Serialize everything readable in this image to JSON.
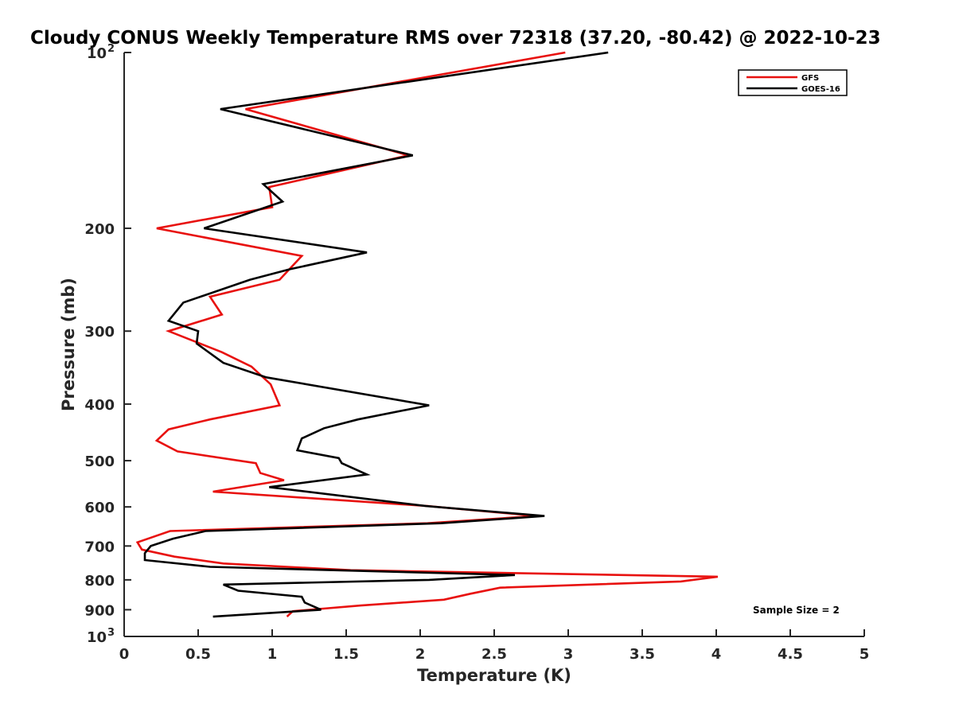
{
  "chart_data": {
    "type": "line",
    "title": "Cloudy CONUS Weekly Temperature RMS over 72318 (37.20, -80.42) @ 2022-10-23",
    "xlabel": "Temperature (K)",
    "ylabel": "Pressure (mb)",
    "xlim": [
      0,
      5
    ],
    "ylim": [
      100,
      1000
    ],
    "y_scale": "log",
    "y_reversed": true,
    "x_ticks": [
      "0",
      "0.5",
      "1",
      "1.5",
      "2",
      "2.5",
      "3",
      "3.5",
      "4",
      "4.5",
      "5"
    ],
    "y_ticks": [
      {
        "value": 100,
        "base": "10",
        "exp": "2"
      },
      {
        "value": 200,
        "label": "200"
      },
      {
        "value": 300,
        "label": "300"
      },
      {
        "value": 400,
        "label": "400"
      },
      {
        "value": 500,
        "label": "500"
      },
      {
        "value": 600,
        "label": "600"
      },
      {
        "value": 700,
        "label": "700"
      },
      {
        "value": 800,
        "label": "800"
      },
      {
        "value": 900,
        "label": "900"
      },
      {
        "value": 1000,
        "base": "10",
        "exp": "3"
      }
    ],
    "legend_position": "top-right",
    "annotation": "Sample Size = 2",
    "series": [
      {
        "name": "GFS",
        "color": "#e8110f",
        "points": [
          [
            2.98,
            100
          ],
          [
            0.82,
            125
          ],
          [
            1.92,
            150
          ],
          [
            0.98,
            170
          ],
          [
            1.0,
            184
          ],
          [
            0.22,
            200
          ],
          [
            1.2,
            223
          ],
          [
            1.05,
            245
          ],
          [
            0.58,
            262
          ],
          [
            0.66,
            281
          ],
          [
            0.3,
            300
          ],
          [
            0.66,
            326
          ],
          [
            0.86,
            345
          ],
          [
            0.99,
            370
          ],
          [
            1.05,
            402
          ],
          [
            0.58,
            425
          ],
          [
            0.3,
            442
          ],
          [
            0.22,
            462
          ],
          [
            0.36,
            482
          ],
          [
            0.89,
            505
          ],
          [
            0.92,
            525
          ],
          [
            1.08,
            540
          ],
          [
            0.6,
            565
          ],
          [
            2.05,
            598
          ],
          [
            2.79,
            622
          ],
          [
            2.05,
            640
          ],
          [
            0.31,
            660
          ],
          [
            0.09,
            690
          ],
          [
            0.12,
            710
          ],
          [
            0.34,
            730
          ],
          [
            0.67,
            750
          ],
          [
            1.53,
            770
          ],
          [
            4.01,
            790
          ],
          [
            3.76,
            805
          ],
          [
            2.54,
            825
          ],
          [
            2.34,
            845
          ],
          [
            2.16,
            865
          ],
          [
            1.6,
            885
          ],
          [
            1.14,
            905
          ],
          [
            1.1,
            925
          ]
        ]
      },
      {
        "name": "GOES-16",
        "color": "#000000",
        "points": [
          [
            3.27,
            100
          ],
          [
            0.65,
            125
          ],
          [
            1.95,
            150
          ],
          [
            0.94,
            168
          ],
          [
            1.07,
            180
          ],
          [
            0.54,
            200
          ],
          [
            1.64,
            220
          ],
          [
            1.12,
            235
          ],
          [
            0.85,
            245
          ],
          [
            0.4,
            268
          ],
          [
            0.3,
            288
          ],
          [
            0.5,
            300
          ],
          [
            0.49,
            315
          ],
          [
            0.67,
            340
          ],
          [
            0.96,
            360
          ],
          [
            2.06,
            402
          ],
          [
            1.58,
            425
          ],
          [
            1.35,
            440
          ],
          [
            1.2,
            458
          ],
          [
            1.17,
            480
          ],
          [
            1.45,
            495
          ],
          [
            1.47,
            505
          ],
          [
            1.64,
            528
          ],
          [
            0.98,
            555
          ],
          [
            2.04,
            598
          ],
          [
            2.84,
            622
          ],
          [
            2.14,
            640
          ],
          [
            0.55,
            660
          ],
          [
            0.33,
            680
          ],
          [
            0.18,
            700
          ],
          [
            0.14,
            720
          ],
          [
            0.14,
            740
          ],
          [
            0.58,
            760
          ],
          [
            2.64,
            785
          ],
          [
            2.06,
            800
          ],
          [
            0.67,
            815
          ],
          [
            0.77,
            835
          ],
          [
            1.2,
            855
          ],
          [
            1.22,
            875
          ],
          [
            1.33,
            900
          ],
          [
            0.6,
            925
          ]
        ]
      }
    ]
  }
}
